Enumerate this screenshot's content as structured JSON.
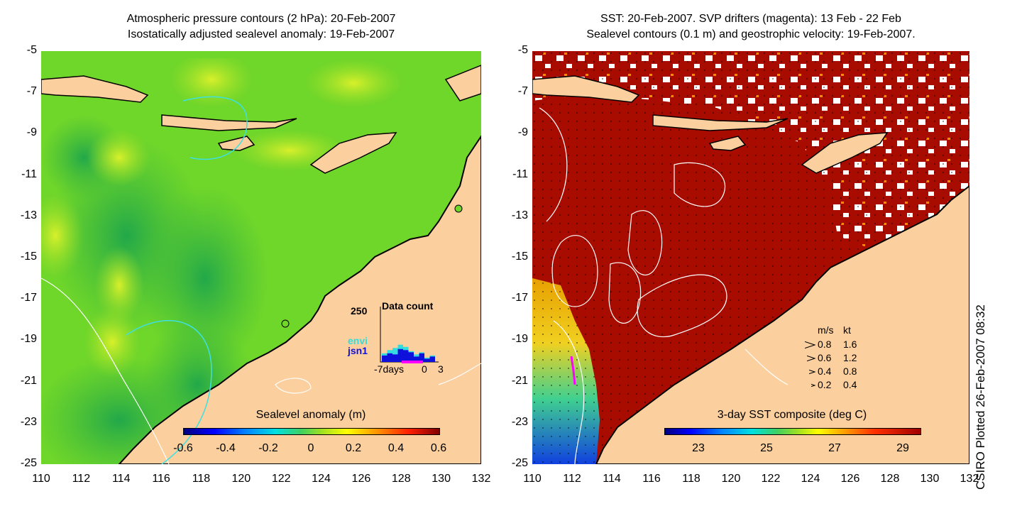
{
  "left_panel": {
    "title_line1": "Atmospheric pressure contours (2 hPa): 20-Feb-2007",
    "title_line2": "Isostatically adjusted sealevel anomaly: 19-Feb-2007",
    "colorbar": {
      "label": "Sealevel anomaly (m)",
      "ticks": [
        "-0.6",
        "-0.4",
        "-0.2",
        "0",
        "0.2",
        "0.4",
        "0.6"
      ],
      "range": [
        -0.6,
        0.6
      ]
    },
    "data_count": {
      "title": "Data count",
      "ymax_label": "250",
      "series": [
        {
          "name": "envi",
          "color": "#33dddd"
        },
        {
          "name": "jsn1",
          "color": "#1010dd"
        }
      ],
      "x_labels": [
        "-7days",
        "0",
        "3"
      ],
      "bins_envi": [
        40,
        55,
        65,
        80,
        70,
        50,
        35,
        45,
        20,
        30
      ],
      "bins_jsn1": [
        30,
        40,
        35,
        60,
        55,
        45,
        25,
        40,
        15,
        25
      ]
    }
  },
  "right_panel": {
    "title_line1": "SST: 20-Feb-2007. SVP drifters (magenta): 13 Feb - 22 Feb",
    "title_line2": "Sealevel contours (0.1 m) and geostrophic velocity: 19-Feb-2007.",
    "colorbar": {
      "label": "3-day SST composite (deg C)",
      "ticks": [
        "23",
        "25",
        "27",
        "29"
      ],
      "range": [
        22,
        29.5
      ]
    },
    "velocity_legend": {
      "header_ms": "m/s",
      "header_kt": "kt",
      "rows": [
        {
          "ms": "0.8",
          "kt": "1.6"
        },
        {
          "ms": "0.6",
          "kt": "1.2"
        },
        {
          "ms": "0.4",
          "kt": "0.8"
        },
        {
          "ms": "0.2",
          "kt": "0.4"
        }
      ]
    }
  },
  "axes": {
    "y_ticks": [
      "-5",
      "-7",
      "-9",
      "-11",
      "-13",
      "-15",
      "-17",
      "-19",
      "-21",
      "-23",
      "-25"
    ],
    "x_ticks": [
      "110",
      "112",
      "114",
      "116",
      "118",
      "120",
      "122",
      "124",
      "126",
      "128",
      "130",
      "132"
    ],
    "lon_range": [
      110,
      132
    ],
    "lat_range": [
      -25,
      -5
    ]
  },
  "credit": "CSIRO Plotted 26-Feb-2007 08:32",
  "colors": {
    "land": "#fccf9e",
    "sea_green": "#6fd62a",
    "sst_dark_red": "#a80c00",
    "drifter": "#ff00ff"
  }
}
